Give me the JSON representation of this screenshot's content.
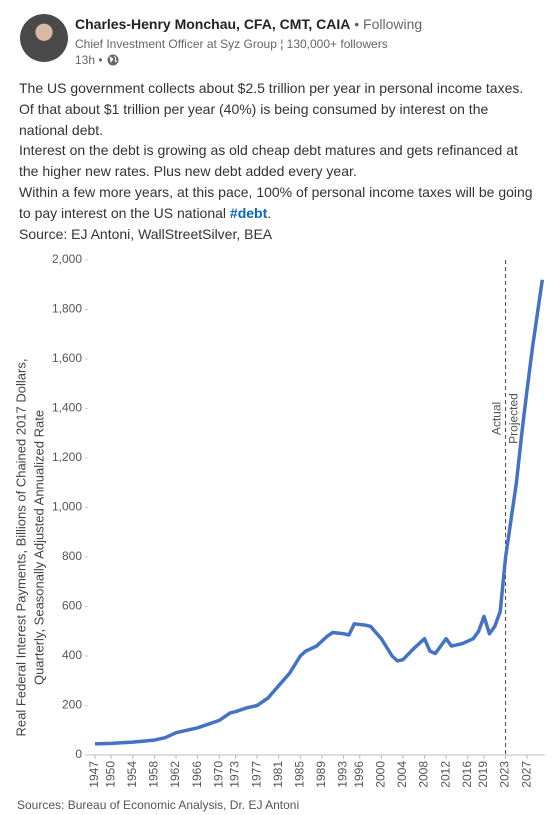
{
  "post": {
    "author": "Charles-Henry Monchau, CFA, CMT, CAIA",
    "follow": "• Following",
    "headline": "Chief Investment Officer at Syz Group ¦ 130,000+ followers",
    "time": "13h •",
    "paragraphs": [
      "The US government collects about $2.5 trillion per year in personal income taxes. Of that about $1 trillion per year (40%) is being consumed by interest on the national debt.",
      "Interest on the debt is growing as old cheap debt matures and gets refinanced at the higher new rates. Plus new debt added every year.",
      "Within a few more years, at this pace, 100% of personal income taxes will be going to pay interest on the US national ",
      "Source: EJ Antoni, WallStreetSilver, BEA"
    ],
    "hashtag": "#debt",
    "hashtag_after": "."
  },
  "chart_data": {
    "type": "line",
    "y_label": [
      "Real Federal Interest Payments, Billions of Chained 2017 Dollars,",
      "Quarterly, Seasonally Adjusted Annualized Rate"
    ],
    "source": "Sources: Bureau of Economic Analysis, Dr. EJ Antoni",
    "annotations": [
      "Actual",
      "Projected"
    ],
    "divider_x": 2023,
    "color": "#4472c4",
    "x": [
      1947,
      1950,
      1954,
      1958,
      1960,
      1962,
      1966,
      1970,
      1972,
      1973,
      1975,
      1977,
      1979,
      1981,
      1983,
      1985,
      1986,
      1988,
      1990,
      1991,
      1993,
      1994,
      1995,
      1997,
      1998,
      2000,
      2002,
      2003,
      2004,
      2006,
      2008,
      2009,
      2010,
      2012,
      2013,
      2015,
      2017,
      2018,
      2019,
      2020,
      2021,
      2022,
      2023,
      2024,
      2025,
      2026,
      2027,
      2028,
      2029,
      2029.8
    ],
    "values": [
      45,
      47,
      52,
      60,
      70,
      90,
      110,
      140,
      170,
      175,
      190,
      200,
      230,
      280,
      330,
      400,
      420,
      440,
      480,
      495,
      490,
      485,
      530,
      525,
      520,
      470,
      400,
      380,
      385,
      430,
      470,
      420,
      410,
      470,
      440,
      450,
      470,
      500,
      560,
      490,
      520,
      580,
      800,
      950,
      1100,
      1300,
      1480,
      1650,
      1800,
      1920
    ],
    "xlim": [
      1945.7,
      2030.3
    ],
    "xticks": [
      1947,
      1950,
      1954,
      1958,
      1962,
      1966,
      1970,
      1973,
      1977,
      1981,
      1985,
      1989,
      1993,
      1996,
      2000,
      2004,
      2008,
      2012,
      2016,
      2019,
      2023,
      2027
    ],
    "ylim": [
      0,
      2000
    ],
    "yticks": [
      0,
      200,
      400,
      600,
      800,
      {
        "value": 1000,
        "label": "1,000"
      },
      {
        "value": 1200,
        "label": "1,200"
      },
      {
        "value": 1400,
        "label": "1,400"
      },
      {
        "value": 1600,
        "label": "1,600"
      },
      {
        "value": 1800,
        "label": "1,800"
      },
      {
        "value": 2000,
        "label": "2,000"
      }
    ],
    "grid": false
  }
}
